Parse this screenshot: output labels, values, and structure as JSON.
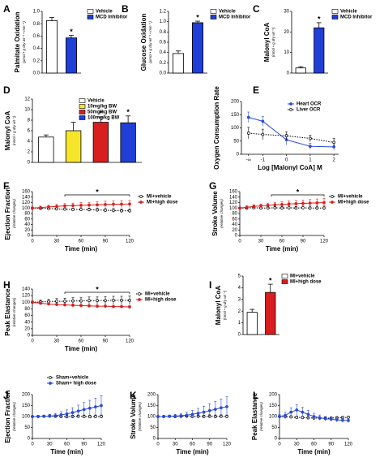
{
  "chart_data": [
    {
      "panel": "A",
      "type": "bar",
      "ylabel": "Palmitate Oxidation",
      "ylabel_sub": "(µmol • g dry wt⁻¹ • min⁻¹)",
      "ylim": [
        0,
        1
      ],
      "yticks": [
        {
          "value": 0,
          "label": "0.0"
        },
        0.2,
        0.4,
        0.6,
        0.8,
        {
          "value": 1,
          "label": "1.0"
        }
      ],
      "series": [
        {
          "name": "Vehicle",
          "color": "#ffffff",
          "values": [
            0.85
          ],
          "errors": [
            0.05
          ]
        },
        {
          "name": "MCD Inhibitor",
          "color": "#1f3fd6",
          "values": [
            0.57
          ],
          "errors": [
            0.04
          ],
          "annotation": "*"
        }
      ]
    },
    {
      "panel": "B",
      "type": "bar",
      "ylabel": "Glucose Oxidation",
      "ylabel_sub": "(µmol • g dry wt⁻¹ • min⁻¹)",
      "ylim": [
        0,
        1.2
      ],
      "yticks": [
        {
          "value": 0,
          "label": "0.0"
        },
        0.2,
        0.4,
        0.6,
        0.8,
        {
          "value": 1,
          "label": "1.0"
        },
        1.2
      ],
      "series": [
        {
          "name": "Vehicle",
          "color": "#ffffff",
          "values": [
            0.38
          ],
          "errors": [
            0.05
          ]
        },
        {
          "name": "MCD Inhibitor",
          "color": "#1f3fd6",
          "values": [
            0.98
          ],
          "errors": [
            0.03
          ],
          "annotation": "*"
        }
      ]
    },
    {
      "panel": "C",
      "type": "bar",
      "ylabel": "Malonyl CoA",
      "ylabel_sub": "(nmol • g dry wt⁻¹)",
      "ylim": [
        0,
        30
      ],
      "yticks": [
        0,
        10,
        20,
        30
      ],
      "series": [
        {
          "name": "Vehicle",
          "color": "#ffffff",
          "values": [
            2.5
          ],
          "errors": [
            0.6
          ]
        },
        {
          "name": "MCD Inhibitor",
          "color": "#1f3fd6",
          "values": [
            22
          ],
          "errors": [
            2.5
          ],
          "annotation": "*"
        }
      ]
    },
    {
      "panel": "D",
      "type": "bar",
      "ylabel": "Malonyl CoA",
      "ylabel_sub": "(nmol • g dry wt⁻¹)",
      "ylim": [
        0,
        12
      ],
      "yticks": [
        0,
        2,
        4,
        6,
        8,
        10,
        12
      ],
      "series": [
        {
          "name": "Vehicle",
          "color": "#ffffff",
          "values": [
            4.8
          ],
          "errors": [
            0.4
          ]
        },
        {
          "name": "10mg/kg BW",
          "color": "#f5e62a",
          "values": [
            6.0
          ],
          "errors": [
            1.6
          ]
        },
        {
          "name": "50mg/kg BW",
          "color": "#d81e1e",
          "values": [
            7.6
          ],
          "errors": [
            1.0
          ],
          "annotation": "*"
        },
        {
          "name": "100mg/kg BW",
          "color": "#1f3fd6",
          "values": [
            7.5
          ],
          "errors": [
            1.3
          ],
          "annotation": "*"
        }
      ]
    },
    {
      "panel": "E",
      "type": "line",
      "ylabel": "Oxygen Consumption Rate",
      "xlabel": "Log [Malonyl CoA] M",
      "x": [
        -1.6,
        -1,
        0,
        1,
        2
      ],
      "xlim": [
        -1.9,
        2.2
      ],
      "xticks": [
        {
          "value": -1.6,
          "label": "-∞"
        },
        -1,
        0,
        1,
        2
      ],
      "ylim": [
        0,
        200
      ],
      "yticks": [
        0,
        50,
        100,
        150,
        200
      ],
      "series": [
        {
          "name": "Heart OCR",
          "color": "#2a4bd7",
          "style": "solid",
          "values": [
            140,
            125,
            55,
            30,
            28
          ],
          "errors": [
            20,
            18,
            20,
            12,
            12
          ]
        },
        {
          "name": "Liver OCR",
          "color": "#000000",
          "style": "dotted",
          "values": [
            80,
            75,
            70,
            60,
            45
          ],
          "errors": [
            22,
            20,
            15,
            12,
            15
          ]
        }
      ]
    },
    {
      "panel": "F",
      "type": "line",
      "ylabel": "Ejection Fraction",
      "ylabel_sub": "(relative changes)",
      "xlabel": "Time (min)",
      "x": [
        0,
        10,
        20,
        30,
        40,
        50,
        60,
        70,
        80,
        90,
        100,
        110,
        120
      ],
      "xlim": [
        0,
        120
      ],
      "xticks": [
        0,
        30,
        60,
        90,
        120
      ],
      "ylim": [
        0,
        160
      ],
      "yticks": [
        0,
        20,
        40,
        60,
        80,
        100,
        120,
        140,
        160
      ],
      "significance": {
        "text": "*",
        "x": [
          40,
          120
        ]
      },
      "series": [
        {
          "name": "MI+vehicle",
          "color": "#000000",
          "style": "dotted",
          "values": [
            100,
            99,
            98,
            97,
            96,
            95,
            95,
            94,
            93,
            92,
            91,
            90,
            90
          ],
          "errors": [
            3,
            4,
            4,
            5,
            5,
            5,
            6,
            6,
            6,
            6,
            7,
            7,
            7
          ]
        },
        {
          "name": "MI+high dose",
          "color": "#d81e1e",
          "style": "solid",
          "values": [
            100,
            102,
            104,
            106,
            108,
            109,
            110,
            111,
            112,
            113,
            114,
            114,
            115
          ],
          "errors": [
            3,
            5,
            6,
            7,
            8,
            9,
            10,
            10,
            11,
            12,
            12,
            13,
            13
          ]
        }
      ]
    },
    {
      "panel": "G",
      "type": "line",
      "ylabel": "Stroke Volume",
      "ylabel_sub": "(relative changes)",
      "xlabel": "Time (min)",
      "x": [
        0,
        10,
        20,
        30,
        40,
        50,
        60,
        70,
        80,
        90,
        100,
        110,
        120
      ],
      "xlim": [
        0,
        120
      ],
      "xticks": [
        0,
        30,
        60,
        90,
        120
      ],
      "ylim": [
        0,
        160
      ],
      "yticks": [
        0,
        20,
        40,
        60,
        80,
        100,
        120,
        140,
        160
      ],
      "significance": {
        "text": "*",
        "x": [
          45,
          120
        ]
      },
      "series": [
        {
          "name": "MI+vehicle",
          "color": "#000000",
          "style": "dotted",
          "values": [
            100,
            100,
            101,
            100,
            100,
            101,
            100,
            101,
            100,
            101,
            100,
            100,
            100
          ],
          "errors": [
            3,
            4,
            4,
            5,
            5,
            5,
            6,
            6,
            6,
            6,
            7,
            7,
            7
          ]
        },
        {
          "name": "MI+high dose",
          "color": "#d81e1e",
          "style": "solid",
          "values": [
            100,
            103,
            106,
            108,
            110,
            112,
            113,
            115,
            116,
            117,
            118,
            119,
            120
          ],
          "errors": [
            3,
            5,
            6,
            7,
            8,
            9,
            10,
            11,
            12,
            12,
            13,
            14,
            15
          ]
        }
      ]
    },
    {
      "panel": "H",
      "type": "line",
      "ylabel": "Peak Elastance",
      "ylabel_sub": "(relative changes)",
      "xlabel": "Time (min)",
      "x": [
        0,
        10,
        20,
        30,
        40,
        50,
        60,
        70,
        80,
        90,
        100,
        110,
        120
      ],
      "xlim": [
        0,
        120
      ],
      "xticks": [
        0,
        30,
        60,
        90,
        120
      ],
      "ylim": [
        0,
        140
      ],
      "yticks": [
        0,
        20,
        40,
        60,
        80,
        100,
        120,
        140
      ],
      "significance": {
        "text": "*",
        "x": [
          40,
          120
        ]
      },
      "series": [
        {
          "name": "MI+vehicle",
          "color": "#000000",
          "style": "dotted",
          "values": [
            100,
            101,
            102,
            103,
            103,
            104,
            104,
            105,
            105,
            105,
            106,
            106,
            106
          ],
          "errors": [
            4,
            6,
            7,
            8,
            9,
            10,
            10,
            11,
            11,
            12,
            12,
            12,
            13
          ]
        },
        {
          "name": "MI+high dose",
          "color": "#d81e1e",
          "style": "solid",
          "values": [
            100,
            97,
            95,
            93,
            92,
            91,
            90,
            89,
            88,
            88,
            87,
            87,
            86
          ],
          "errors": [
            3,
            3,
            3,
            4,
            4,
            4,
            4,
            4,
            4,
            4,
            4,
            4,
            4
          ]
        }
      ]
    },
    {
      "panel": "I",
      "type": "bar",
      "ylabel": "Malonyl CoA",
      "ylabel_sub": "(nmol • g dry wt⁻¹)",
      "ylim": [
        0,
        5
      ],
      "yticks": [
        0,
        1,
        2,
        3,
        4,
        5
      ],
      "series": [
        {
          "name": "MI+vehicle",
          "color": "#ffffff",
          "values": [
            1.9
          ],
          "errors": [
            0.25
          ]
        },
        {
          "name": "MI+high dose",
          "color": "#d81e1e",
          "values": [
            3.6
          ],
          "errors": [
            0.7
          ],
          "annotation": "*"
        }
      ]
    },
    {
      "panel": "J",
      "type": "line",
      "ylabel": "Ejection Fraction",
      "ylabel_sub": "(relative changes)",
      "xlabel": "Time (min)",
      "x": [
        0,
        10,
        20,
        30,
        40,
        50,
        60,
        70,
        80,
        90,
        100,
        110,
        120
      ],
      "xlim": [
        0,
        120
      ],
      "xticks": [
        0,
        30,
        60,
        90,
        120
      ],
      "ylim": [
        0,
        200
      ],
      "yticks": [
        0,
        50,
        100,
        150,
        200
      ],
      "series": [
        {
          "name": "Sham+vehicle",
          "color": "#000000",
          "style": "dotted",
          "values": [
            100,
            100,
            101,
            102,
            101,
            100,
            99,
            100,
            101,
            100,
            99,
            100,
            100
          ],
          "errors": [
            4,
            5,
            5,
            5,
            6,
            6,
            6,
            6,
            6,
            7,
            7,
            7,
            7
          ]
        },
        {
          "name": "Sham+ high dose",
          "color": "#2a4bd7",
          "style": "solid",
          "values": [
            100,
            100,
            101,
            102,
            104,
            108,
            112,
            118,
            125,
            132,
            138,
            144,
            150
          ],
          "errors": [
            4,
            5,
            6,
            8,
            10,
            14,
            18,
            22,
            27,
            32,
            36,
            40,
            45
          ]
        }
      ]
    },
    {
      "panel": "K",
      "type": "line",
      "ylabel": "Stroke Volume",
      "ylabel_sub": "(relative changes)",
      "xlabel": "Time (min)",
      "x": [
        0,
        10,
        20,
        30,
        40,
        50,
        60,
        70,
        80,
        90,
        100,
        110,
        120
      ],
      "xlim": [
        0,
        120
      ],
      "xticks": [
        0,
        30,
        60,
        90,
        120
      ],
      "ylim": [
        0,
        200
      ],
      "yticks": [
        0,
        50,
        100,
        150,
        200
      ],
      "series": [
        {
          "color": "#000000",
          "style": "dotted",
          "values": [
            100,
            100,
            101,
            100,
            101,
            102,
            100,
            101,
            100,
            101,
            100,
            101,
            100
          ],
          "errors": [
            4,
            5,
            5,
            5,
            6,
            6,
            6,
            6,
            6,
            7,
            7,
            7,
            7
          ]
        },
        {
          "color": "#2a4bd7",
          "style": "solid",
          "values": [
            100,
            100,
            101,
            102,
            104,
            106,
            110,
            115,
            120,
            127,
            133,
            140,
            145
          ],
          "errors": [
            4,
            5,
            6,
            8,
            10,
            14,
            18,
            22,
            27,
            32,
            36,
            40,
            45
          ]
        }
      ]
    },
    {
      "panel": "L",
      "type": "line",
      "ylabel": "Peak Elastance",
      "ylabel_sub": "(relative changes)",
      "xlabel": "Time (min)",
      "x": [
        0,
        10,
        20,
        30,
        40,
        50,
        60,
        70,
        80,
        90,
        100,
        110,
        120
      ],
      "xlim": [
        0,
        120
      ],
      "xticks": [
        0,
        30,
        60,
        90,
        120
      ],
      "ylim": [
        0,
        200
      ],
      "yticks": [
        0,
        50,
        100,
        150,
        200
      ],
      "series": [
        {
          "color": "#000000",
          "style": "dotted",
          "values": [
            100,
            100,
            98,
            96,
            95,
            94,
            93,
            93,
            92,
            93,
            94,
            95,
            96
          ],
          "errors": [
            5,
            6,
            6,
            6,
            6,
            6,
            6,
            6,
            6,
            6,
            6,
            6,
            6
          ]
        },
        {
          "color": "#2a4bd7",
          "style": "solid",
          "values": [
            100,
            105,
            120,
            130,
            120,
            110,
            100,
            95,
            90,
            88,
            85,
            83,
            82
          ],
          "errors": [
            10,
            15,
            20,
            25,
            22,
            18,
            15,
            12,
            10,
            10,
            10,
            10,
            10
          ]
        }
      ]
    }
  ]
}
